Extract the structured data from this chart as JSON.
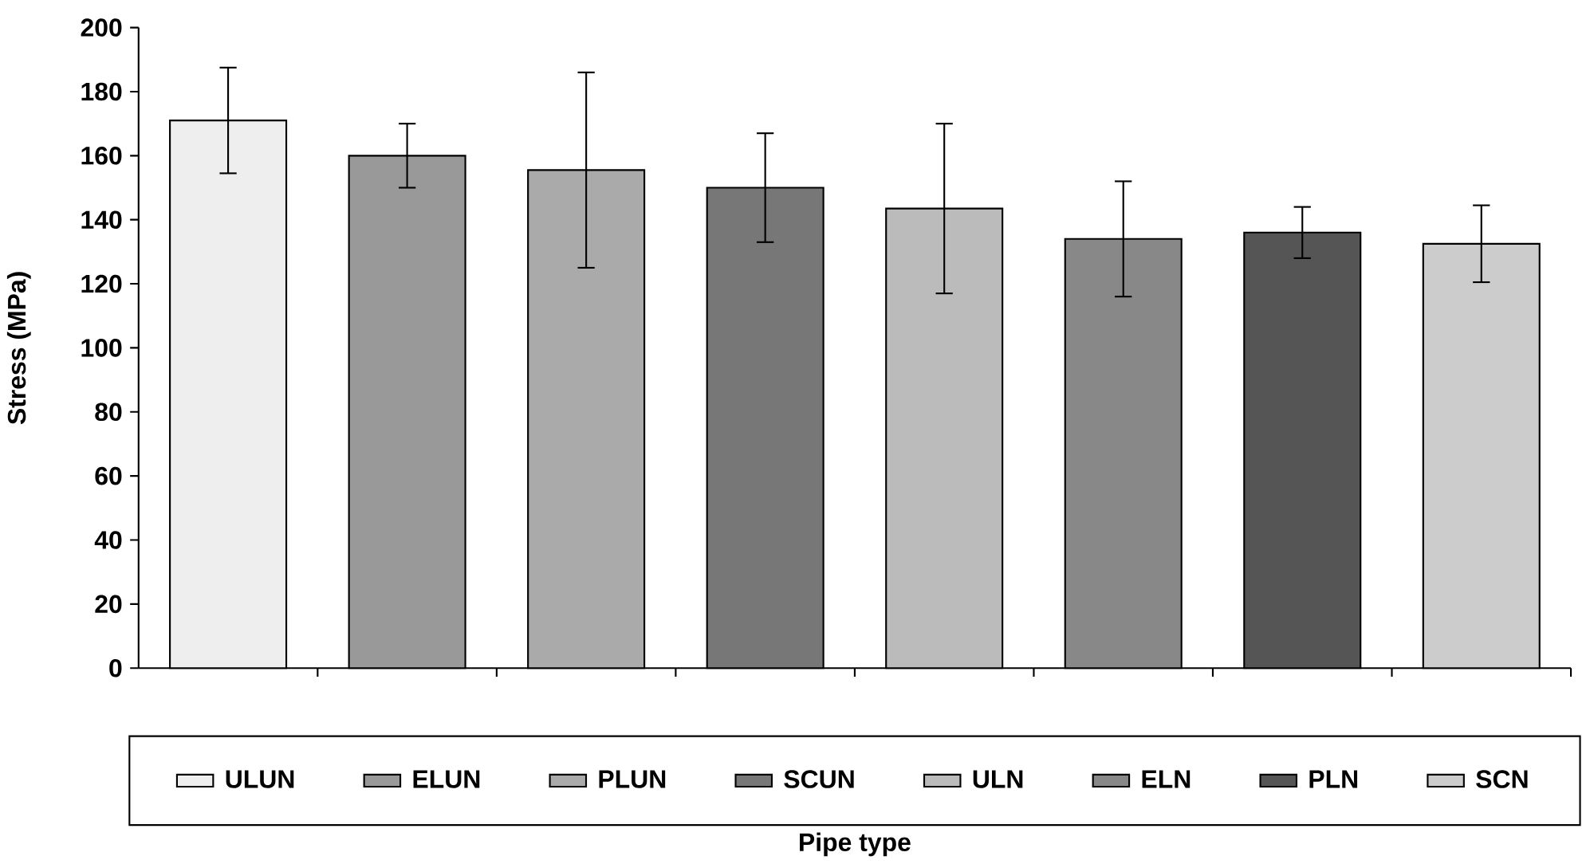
{
  "chart_data": {
    "type": "bar",
    "ylabel": "Stress (MPa)",
    "annotations": [
      "Pipe type"
    ],
    "categories": [
      null,
      null,
      null,
      null,
      null,
      null,
      null,
      null
    ],
    "ylim": [
      0,
      200
    ],
    "yticks": [
      0,
      20,
      40,
      60,
      80,
      100,
      120,
      140,
      160,
      180,
      200
    ],
    "legend": "bottom",
    "series": [
      {
        "name": "ULUN",
        "color": "#eeeeee",
        "values": [
          171,
          null,
          null,
          null,
          null,
          null,
          null,
          null
        ],
        "errors": [
          16.5,
          null,
          null,
          null,
          null,
          null,
          null,
          null
        ]
      },
      {
        "name": "ELUN",
        "color": "#999999",
        "values": [
          null,
          160,
          null,
          null,
          null,
          null,
          null,
          null
        ],
        "errors": [
          null,
          10,
          null,
          null,
          null,
          null,
          null,
          null
        ]
      },
      {
        "name": "PLUN",
        "color": "#aaaaaa",
        "values": [
          null,
          null,
          155.5,
          null,
          null,
          null,
          null,
          null
        ],
        "errors": [
          null,
          null,
          30.5,
          null,
          null,
          null,
          null,
          null
        ]
      },
      {
        "name": "SCUN",
        "color": "#777777",
        "values": [
          null,
          null,
          null,
          150,
          null,
          null,
          null,
          null
        ],
        "errors": [
          null,
          null,
          null,
          17,
          null,
          null,
          null,
          null
        ]
      },
      {
        "name": "ULN",
        "color": "#bbbbbb",
        "values": [
          null,
          null,
          null,
          null,
          143.5,
          null,
          null,
          null
        ],
        "errors": [
          null,
          null,
          null,
          null,
          26.5,
          null,
          null,
          null
        ]
      },
      {
        "name": "ELN",
        "color": "#888888",
        "values": [
          null,
          null,
          null,
          null,
          null,
          134,
          null,
          null
        ],
        "errors": [
          null,
          null,
          null,
          null,
          null,
          18,
          null,
          null
        ]
      },
      {
        "name": "PLN",
        "color": "#555555",
        "values": [
          null,
          null,
          null,
          null,
          null,
          null,
          136,
          null
        ],
        "errors": [
          null,
          null,
          null,
          null,
          null,
          null,
          8,
          null
        ]
      },
      {
        "name": "SCN",
        "color": "#cccccc",
        "values": [
          null,
          null,
          null,
          null,
          null,
          null,
          null,
          132.5
        ],
        "errors": [
          null,
          null,
          null,
          null,
          null,
          null,
          null,
          12
        ]
      }
    ]
  }
}
